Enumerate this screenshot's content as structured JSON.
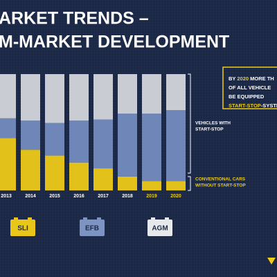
{
  "chart_data": {
    "type": "stacked-bar",
    "title_lines": [
      "ARKET TRENDS –",
      "M-MARKET DEVELOPMENT"
    ],
    "categories": [
      "2013",
      "2014",
      "2015",
      "2016",
      "2017",
      "2018",
      "2019",
      "2020"
    ],
    "category_colors": [
      "#ffffff",
      "#ffffff",
      "#ffffff",
      "#ffffff",
      "#ffffff",
      "#ffffff",
      "#f0cd14",
      "#f0cd14"
    ],
    "ylim": [
      0,
      100
    ],
    "series": [
      {
        "color": "#e2c11a",
        "values": [
          45,
          35,
          30,
          24,
          19,
          12,
          8,
          8
        ]
      },
      {
        "color": "#6f86b9",
        "values": [
          17,
          25,
          28,
          36,
          42,
          54,
          58,
          61
        ]
      },
      {
        "color": "#c9ccd2",
        "values": [
          38,
          40,
          42,
          40,
          39,
          34,
          34,
          31
        ]
      }
    ],
    "annotations": [
      {
        "lines": [
          "VEHICLES WITH",
          "START-STOP"
        ],
        "color": "#ffffff"
      },
      {
        "lines": [
          "CONVENTIONAL CARS",
          "WITHOUT START-STOP"
        ],
        "color": "#f0cd14"
      }
    ],
    "callout": [
      [
        {
          "text": "BY ",
          "color": "#ffffff"
        },
        {
          "text": "2020",
          "color": "#f0cd14"
        },
        {
          "text": " MORE TH",
          "color": "#ffffff"
        }
      ],
      [
        {
          "text": "OF ALL VEHICLE",
          "color": "#ffffff"
        }
      ],
      [
        {
          "text": "BE EQUIPPED",
          "color": "#ffffff"
        }
      ],
      [
        {
          "text": "START-STOP",
          "color": "#f0cd14"
        },
        {
          "text": "-SYSTEM",
          "color": "#ffffff"
        }
      ]
    ],
    "batteries": [
      {
        "label": "SLI",
        "color": "#e8c71a"
      },
      {
        "label": "EFB",
        "color": "#7d93c2"
      },
      {
        "label": "AGM",
        "color": "#e6e8ec"
      }
    ]
  }
}
